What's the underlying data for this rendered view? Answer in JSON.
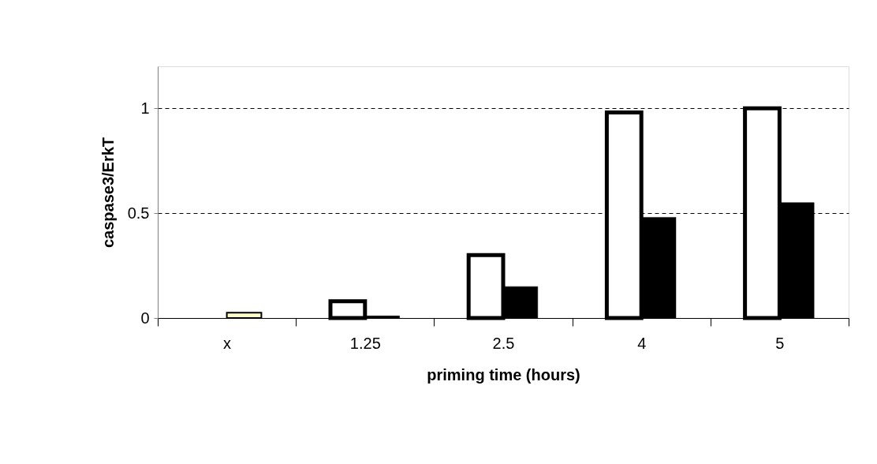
{
  "chart_data": {
    "type": "bar",
    "xlabel": "priming time (hours)",
    "ylabel": "caspase3/ErkT",
    "categories": [
      "x",
      "1.25",
      "2.5",
      "4",
      "5"
    ],
    "series": [
      {
        "color": "#ffffff",
        "values": [
          null,
          0.08,
          0.3,
          0.98,
          1.0
        ]
      },
      {
        "colors": [
          "#ffffcc",
          "#000000",
          "#000000",
          "#000000",
          "#000000"
        ],
        "values": [
          0.025,
          0.01,
          0.15,
          0.48,
          0.55
        ]
      }
    ],
    "ylim": [
      0,
      1.2
    ],
    "yticks": [
      0,
      0.5,
      1
    ],
    "grid": "y",
    "line_style": "dashed"
  }
}
